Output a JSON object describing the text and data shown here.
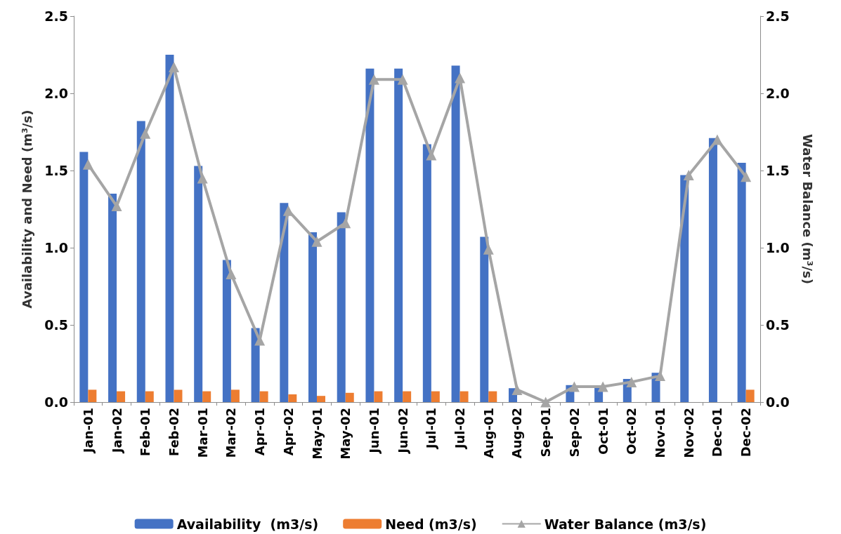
{
  "chart_data": {
    "type": "bar",
    "ylabel": "Availability and Need (m³/s)",
    "y2label": "Water Balance (m³/s)",
    "categories": [
      "Jan-01",
      "Jan-02",
      "Feb-01",
      "Feb-02",
      "Mar-01",
      "Mar-02",
      "Apr-01",
      "Apr-02",
      "May-01",
      "May-02",
      "Jun-01",
      "Jun-02",
      "Jul-01",
      "Jul-02",
      "Aug-01",
      "Aug-02",
      "Sep-01",
      "Sep-02",
      "Oct-01",
      "Oct-02",
      "Nov-01",
      "Nov-02",
      "Dec-01",
      "Dec-02"
    ],
    "series": [
      {
        "name": "Availability  (m3/s)",
        "color": "#4472c4",
        "values": [
          1.62,
          1.35,
          1.82,
          2.25,
          1.53,
          0.92,
          0.48,
          1.29,
          1.1,
          1.23,
          2.16,
          2.16,
          1.67,
          2.18,
          1.07,
          0.09,
          null,
          0.11,
          0.1,
          0.15,
          0.19,
          1.47,
          1.71,
          1.55
        ]
      },
      {
        "name": "Need (m3/s)",
        "color": "#ed7d31",
        "values": [
          0.08,
          0.07,
          0.07,
          0.08,
          0.07,
          0.08,
          0.07,
          0.05,
          0.04,
          0.06,
          0.07,
          0.07,
          0.07,
          0.07,
          0.07,
          0,
          0,
          0,
          0,
          0,
          0,
          0,
          0,
          0.08
        ]
      },
      {
        "name": "Water Balance (m3/s)",
        "type": "line",
        "axis": "y2",
        "color": "#a5a5a5",
        "marker": "triangle",
        "values": [
          1.54,
          1.27,
          1.74,
          2.17,
          1.45,
          0.83,
          0.4,
          1.24,
          1.04,
          1.16,
          2.09,
          2.09,
          1.6,
          2.1,
          0.99,
          0.08,
          0.0,
          0.1,
          0.1,
          0.13,
          0.17,
          1.47,
          1.7,
          1.46
        ]
      }
    ],
    "ylim": [
      0,
      2.5
    ],
    "yticks": [
      {
        "value": 0,
        "label": "0.0"
      },
      {
        "value": 0.5,
        "label": "0.5"
      },
      {
        "value": 1,
        "label": "1.0"
      },
      {
        "value": 1.5,
        "label": "1.5"
      },
      {
        "value": 2,
        "label": "2.0"
      },
      {
        "value": 2.5,
        "label": "2.5"
      }
    ],
    "y2lim": [
      0,
      2.5
    ],
    "y2ticks": [
      {
        "value": 0,
        "label": "0.0"
      },
      {
        "value": 0.5,
        "label": "0.5"
      },
      {
        "value": 1,
        "label": "1.0"
      },
      {
        "value": 1.5,
        "label": "1.5"
      },
      {
        "value": 2,
        "label": "2.0"
      },
      {
        "value": 2.5,
        "label": "2.5"
      }
    ],
    "grid": false,
    "legend": "bottom"
  }
}
